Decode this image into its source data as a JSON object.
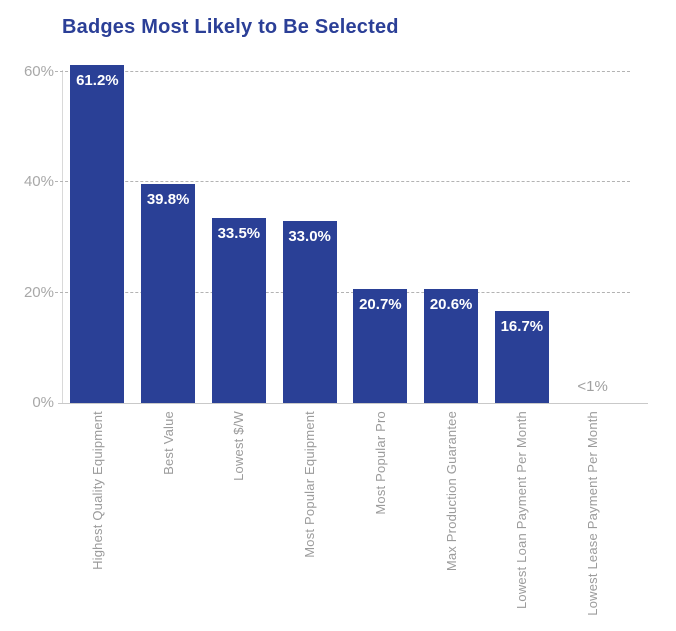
{
  "chart_data": {
    "type": "bar",
    "title": "Badges Most Likely to Be Selected",
    "categories": [
      "Highest Quality Equipment",
      "Best Value",
      "Lowest $/W",
      "Most Popular Equipment",
      "Most Popular Pro",
      "Max Production Guarantee",
      "Lowest Loan Payment Per Month",
      "Lowest Lease Payment Per Month"
    ],
    "values": [
      61.2,
      39.8,
      33.5,
      33.0,
      20.7,
      20.6,
      16.7,
      0.5
    ],
    "value_labels": [
      "61.2%",
      "39.8%",
      "33.5%",
      "33.0%",
      "20.7%",
      "20.6%",
      "16.7%",
      "<1%"
    ],
    "note": "last category shows gray text <1% with no visible bar",
    "xlabel": "",
    "ylabel": "",
    "yticks": [
      0,
      20,
      40,
      60
    ],
    "ytick_labels": [
      "0%",
      "20%",
      "40%",
      "60%"
    ],
    "ylim": [
      0,
      64
    ],
    "grid": "horizontal dashed lines at 20%, 40%, 60%",
    "legend": "none",
    "colors": {
      "bar": "#2a4096",
      "title_text": "#2b3f97",
      "value_text": "#ffffff",
      "below_one_percent_text": "#a0a0a0",
      "axis_tick_text": "#a8a8a8",
      "category_text": "#9b9b9b",
      "gridline": "#b3b3b3",
      "axis_line": "#c9c9c9",
      "background": "#ffffff"
    }
  }
}
